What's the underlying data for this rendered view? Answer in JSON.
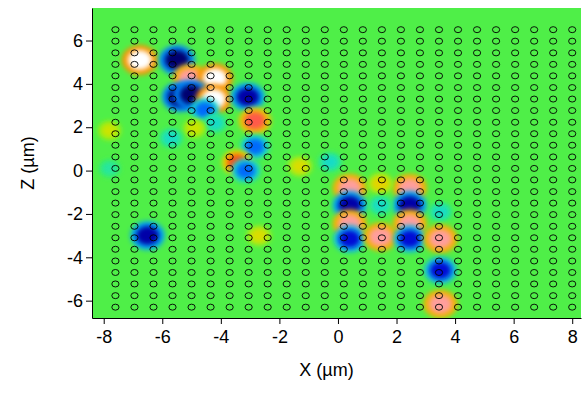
{
  "chart_data": {
    "type": "heatmap",
    "x_label": "X (µm)",
    "y_label": "Z (µm)",
    "xlim": [
      -8.4,
      8.3
    ],
    "ylim": [
      -6.8,
      7.5
    ],
    "xticks": [
      -8,
      -6,
      -4,
      -2,
      0,
      2,
      4,
      6,
      8
    ],
    "yticks": [
      -6,
      -4,
      -2,
      0,
      2,
      4,
      6
    ],
    "color_range": [
      -1,
      1
    ],
    "holes": {
      "x": [
        -7.6,
        -6.95,
        -6.3,
        -5.65,
        -5.0,
        -4.35,
        -3.7,
        -3.05,
        -2.4,
        -1.75,
        -1.1,
        -0.45,
        0.2,
        0.85,
        1.5,
        2.15,
        2.8,
        3.45,
        4.1,
        4.75,
        5.4,
        6.05,
        6.7,
        7.35,
        8.0
      ],
      "z": [
        6.5,
        5.97,
        5.43,
        4.9,
        4.37,
        3.83,
        3.3,
        2.77,
        2.23,
        1.7,
        1.17,
        0.63,
        0.1,
        -0.43,
        -0.97,
        -1.5,
        -2.03,
        -2.57,
        -3.1,
        -3.63,
        -4.17,
        -4.7,
        -5.23,
        -5.77,
        -6.3
      ]
    },
    "field": {
      "x": [
        -6.77,
        -5.5,
        -5.06,
        -4.2,
        -5.4,
        -5.0,
        -4.24,
        -3.08,
        -4.55,
        -2.84,
        -2.84,
        -3.45,
        -3.15,
        -4.2,
        -4.9,
        -7.8,
        -1.3,
        -0.27,
        0.4,
        0.4,
        0.4,
        0.4,
        1.45,
        2.45,
        2.45,
        2.45,
        2.45,
        1.45,
        1.45,
        3.5,
        3.5,
        3.5,
        3.5,
        -6.5,
        -2.7,
        -7.8,
        -5.7
      ],
      "z": [
        5.1,
        5.1,
        4.26,
        4.26,
        3.4,
        3.5,
        3.3,
        3.4,
        2.8,
        2.3,
        1.1,
        0.37,
        0.0,
        2.2,
        1.95,
        1.85,
        0.2,
        0.4,
        -0.8,
        -1.6,
        -2.45,
        -3.15,
        -3.05,
        -0.8,
        -1.6,
        -2.45,
        -3.15,
        -0.6,
        -1.6,
        -1.9,
        -3.15,
        -4.6,
        -6.15,
        -3.0,
        -3.0,
        0.1,
        1.5
      ],
      "values": [
        1,
        -1,
        0.9,
        1,
        -1,
        -1,
        1,
        -0.9,
        -0.6,
        0.8,
        -0.6,
        0.7,
        -0.6,
        -0.3,
        0.3,
        0.3,
        0.35,
        -0.3,
        0.9,
        -0.9,
        0.9,
        -0.8,
        0.9,
        0.9,
        -0.9,
        0.9,
        -0.8,
        0.4,
        -0.3,
        -0.3,
        0.9,
        -0.8,
        0.9,
        -0.9,
        0.35,
        -0.2,
        -0.3
      ]
    }
  }
}
